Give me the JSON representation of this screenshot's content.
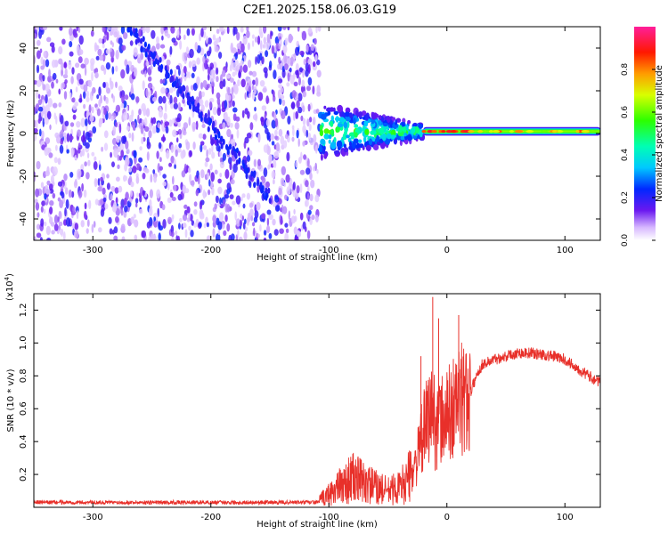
{
  "figure": {
    "title": "C2E1.2025.158.06.03.G19"
  },
  "chart_data": [
    {
      "type": "heatmap",
      "title": "C2E1.2025.158.06.03.G19",
      "xlabel": "Height of straight line (km)",
      "ylabel": "Frequency (Hz)",
      "xlim": [
        -350,
        130
      ],
      "ylim": [
        -50,
        50
      ],
      "x_ticks": [
        -300,
        -200,
        -100,
        0,
        100
      ],
      "y_ticks": [
        -40,
        -20,
        0,
        20,
        40
      ],
      "colorbar": {
        "label": "Normalized spectral amplitude",
        "range": [
          0,
          1
        ],
        "ticks": [
          0.0,
          0.2,
          0.4,
          0.6,
          0.8
        ]
      },
      "features": [
        {
          "region_x": [
            -350,
            -108
          ],
          "frequency_spread_hz": [
            -50,
            50
          ],
          "amplitude": 0.1
        },
        {
          "region_x": [
            -108,
            -20
          ],
          "frequency_spread_hz": [
            -12,
            14
          ],
          "amplitude": 0.35
        },
        {
          "region_x": [
            -20,
            130
          ],
          "frequency_center_hz": 1,
          "frequency_width_hz": 4,
          "amplitude": 0.8
        }
      ],
      "diagonal_trace": {
        "from": [
          -270,
          50
        ],
        "to": [
          -150,
          -30
        ]
      }
    },
    {
      "type": "line",
      "xlabel": "Height of straight line (km)",
      "ylabel": "SNR (10 * v/v)",
      "y_multiplier": "(x10^4)",
      "xlim": [
        -350,
        130
      ],
      "ylim": [
        0,
        1.3
      ],
      "x_ticks": [
        -300,
        -200,
        -100,
        0,
        100
      ],
      "y_ticks": [
        0.2,
        0.4,
        0.6,
        0.8,
        1.0,
        1.2
      ],
      "series": [
        {
          "color": "#e8302a",
          "x": [
            -350,
            -300,
            -250,
            -200,
            -150,
            -110,
            -100,
            -90,
            -80,
            -70,
            -60,
            -50,
            -40,
            -30,
            -25,
            -20,
            -15,
            -12,
            -10,
            -5,
            0,
            5,
            10,
            15,
            20,
            25,
            30,
            40,
            50,
            60,
            70,
            80,
            90,
            100,
            110,
            120,
            130
          ],
          "values": [
            0.03,
            0.03,
            0.03,
            0.03,
            0.03,
            0.03,
            0.08,
            0.13,
            0.18,
            0.15,
            0.12,
            0.1,
            0.12,
            0.2,
            0.3,
            0.45,
            0.55,
            0.6,
            0.5,
            0.52,
            0.55,
            0.6,
            0.65,
            0.65,
            0.7,
            0.8,
            0.87,
            0.9,
            0.92,
            0.94,
            0.94,
            0.93,
            0.92,
            0.9,
            0.85,
            0.8,
            0.76
          ],
          "peaks": [
            [
              -12,
              1.28
            ],
            [
              -7,
              1.15
            ],
            [
              10,
              1.17
            ],
            [
              -22,
              0.92
            ]
          ]
        }
      ]
    }
  ]
}
